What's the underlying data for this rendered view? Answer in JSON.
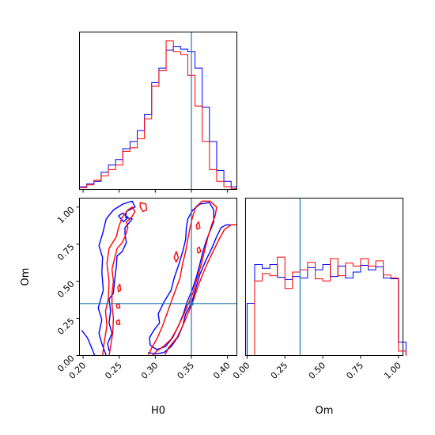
{
  "chart_data": [
    {
      "type": "histogram",
      "panel": "top-left",
      "parameter": "H0",
      "xlim": [
        0.195,
        0.413
      ],
      "truth": 0.35,
      "bins": [
        0.195,
        0.205,
        0.215,
        0.225,
        0.235,
        0.245,
        0.255,
        0.265,
        0.275,
        0.285,
        0.295,
        0.305,
        0.315,
        0.325,
        0.335,
        0.345,
        0.355,
        0.365,
        0.375,
        0.385,
        0.395,
        0.405,
        0.413
      ],
      "series": [
        {
          "color": "#0000ff",
          "values": [
            3,
            6,
            9,
            19,
            27,
            33,
            45,
            53,
            65,
            83,
            118,
            134,
            154,
            158,
            155,
            152,
            134,
            91,
            53,
            21,
            9,
            3
          ]
        },
        {
          "color": "#ff0000",
          "values": [
            2,
            5,
            10,
            15,
            22,
            27,
            42,
            46,
            56,
            78,
            114,
            131,
            164,
            152,
            149,
            126,
            92,
            53,
            22,
            9,
            3,
            1
          ]
        }
      ]
    },
    {
      "type": "contour",
      "panel": "bottom-left",
      "xlabel": "H0",
      "ylabel": "Om",
      "xlim": [
        0.195,
        0.413
      ],
      "ylim": [
        0.0,
        1.06
      ],
      "xticks": [
        "0.20",
        "0.25",
        "0.30",
        "0.35",
        "0.40"
      ],
      "yticks": [
        "0.00",
        "0.25",
        "0.50",
        "0.75",
        "1.00"
      ],
      "xtick_values": [
        0.2,
        0.25,
        0.3,
        0.35,
        0.4
      ],
      "ytick_values": [
        0.0,
        0.25,
        0.5,
        0.75,
        1.0
      ],
      "truth": {
        "x": 0.35,
        "y": 0.35
      },
      "contours": [
        {
          "color": "#0000ff",
          "points": [
            [
              0.198,
              0.17
            ],
            [
              0.206,
              0.12
            ],
            [
              0.212,
              0.05
            ],
            [
              0.216,
              0.0
            ]
          ]
        },
        {
          "color": "#0000ff",
          "points": [
            [
              0.232,
              0.0
            ],
            [
              0.226,
              0.08
            ],
            [
              0.222,
              0.15
            ],
            [
              0.226,
              0.24
            ],
            [
              0.221,
              0.32
            ],
            [
              0.228,
              0.44
            ],
            [
              0.226,
              0.56
            ],
            [
              0.227,
              0.66
            ],
            [
              0.222,
              0.74
            ],
            [
              0.227,
              0.82
            ],
            [
              0.232,
              0.92
            ],
            [
              0.242,
              0.98
            ],
            [
              0.255,
              1.02
            ],
            [
              0.268,
              1.04
            ],
            [
              0.272,
              1.0
            ],
            [
              0.26,
              0.97
            ],
            [
              0.259,
              0.93
            ],
            [
              0.268,
              0.92
            ],
            [
              0.258,
              0.86
            ],
            [
              0.258,
              0.82
            ],
            [
              0.26,
              0.76
            ],
            [
              0.254,
              0.7
            ],
            [
              0.247,
              0.67
            ],
            [
              0.246,
              0.6
            ],
            [
              0.244,
              0.52
            ],
            [
              0.242,
              0.42
            ],
            [
              0.236,
              0.38
            ],
            [
              0.238,
              0.3
            ],
            [
              0.236,
              0.22
            ],
            [
              0.24,
              0.15
            ],
            [
              0.234,
              0.08
            ],
            [
              0.236,
              0.03
            ]
          ]
        },
        {
          "color": "#0000ff",
          "points": [
            [
              0.249,
              0.94
            ],
            [
              0.255,
              0.96
            ],
            [
              0.262,
              0.93
            ],
            [
              0.256,
              0.9
            ],
            [
              0.249,
              0.94
            ]
          ]
        },
        {
          "color": "#0000ff",
          "points": [
            [
              0.29,
              0.02
            ],
            [
              0.3,
              0.01
            ],
            [
              0.312,
              0.02
            ],
            [
              0.322,
              0.06
            ],
            [
              0.332,
              0.13
            ],
            [
              0.338,
              0.2
            ],
            [
              0.342,
              0.28
            ],
            [
              0.35,
              0.35
            ],
            [
              0.356,
              0.45
            ],
            [
              0.362,
              0.55
            ],
            [
              0.37,
              0.64
            ],
            [
              0.378,
              0.72
            ],
            [
              0.385,
              0.8
            ],
            [
              0.391,
              0.86
            ],
            [
              0.398,
              0.88
            ],
            [
              0.41,
              0.88
            ]
          ]
        },
        {
          "color": "#0000ff",
          "points": [
            [
              0.306,
              0.22
            ],
            [
              0.304,
              0.28
            ],
            [
              0.312,
              0.36
            ],
            [
              0.322,
              0.44
            ],
            [
              0.326,
              0.52
            ],
            [
              0.333,
              0.62
            ],
            [
              0.338,
              0.7
            ],
            [
              0.342,
              0.78
            ],
            [
              0.343,
              0.86
            ],
            [
              0.345,
              0.92
            ],
            [
              0.352,
              0.98
            ],
            [
              0.362,
              1.02
            ],
            [
              0.375,
              1.03
            ],
            [
              0.381,
              0.98
            ],
            [
              0.381,
              0.9
            ],
            [
              0.376,
              0.84
            ],
            [
              0.371,
              0.78
            ],
            [
              0.366,
              0.7
            ],
            [
              0.362,
              0.62
            ],
            [
              0.357,
              0.53
            ],
            [
              0.351,
              0.44
            ],
            [
              0.344,
              0.36
            ],
            [
              0.339,
              0.28
            ],
            [
              0.332,
              0.2
            ],
            [
              0.324,
              0.12
            ],
            [
              0.314,
              0.06
            ],
            [
              0.302,
              0.04
            ],
            [
              0.293,
              0.07
            ],
            [
              0.292,
              0.12
            ],
            [
              0.298,
              0.17
            ],
            [
              0.306,
              0.22
            ]
          ]
        },
        {
          "color": "#ff0000",
          "points": [
            [
              0.227,
              0.0
            ],
            [
              0.229,
              0.08
            ],
            [
              0.233,
              0.2
            ],
            [
              0.231,
              0.3
            ],
            [
              0.235,
              0.38
            ],
            [
              0.236,
              0.5
            ],
            [
              0.233,
              0.62
            ],
            [
              0.236,
              0.72
            ],
            [
              0.246,
              0.8
            ],
            [
              0.249,
              0.86
            ],
            [
              0.254,
              0.93
            ],
            [
              0.262,
              0.98
            ],
            [
              0.268,
              1.0
            ],
            [
              0.272,
              0.97
            ],
            [
              0.267,
              0.93
            ],
            [
              0.26,
              0.9
            ],
            [
              0.262,
              0.86
            ],
            [
              0.258,
              0.8
            ],
            [
              0.254,
              0.76
            ],
            [
              0.247,
              0.72
            ],
            [
              0.244,
              0.66
            ],
            [
              0.24,
              0.58
            ],
            [
              0.242,
              0.5
            ],
            [
              0.24,
              0.42
            ],
            [
              0.24,
              0.34
            ],
            [
              0.242,
              0.25
            ],
            [
              0.241,
              0.15
            ],
            [
              0.238,
              0.06
            ],
            [
              0.236,
              0.0
            ]
          ]
        },
        {
          "color": "#ff0000",
          "points": [
            [
              0.248,
              0.46
            ],
            [
              0.251,
              0.48
            ],
            [
              0.252,
              0.44
            ],
            [
              0.249,
              0.43
            ],
            [
              0.248,
              0.46
            ]
          ]
        },
        {
          "color": "#ff0000",
          "points": [
            [
              0.246,
              0.34
            ],
            [
              0.25,
              0.35
            ],
            [
              0.251,
              0.32
            ],
            [
              0.247,
              0.32
            ],
            [
              0.246,
              0.34
            ]
          ]
        },
        {
          "color": "#ff0000",
          "points": [
            [
              0.246,
              0.23
            ],
            [
              0.25,
              0.24
            ],
            [
              0.251,
              0.21
            ],
            [
              0.247,
              0.21
            ],
            [
              0.246,
              0.23
            ]
          ]
        },
        {
          "color": "#ff0000",
          "points": [
            [
              0.279,
              1.03
            ],
            [
              0.287,
              1.02
            ],
            [
              0.288,
              0.98
            ],
            [
              0.283,
              0.97
            ],
            [
              0.279,
              1.0
            ],
            [
              0.279,
              1.03
            ]
          ]
        },
        {
          "color": "#ff0000",
          "points": [
            [
              0.29,
              0.0
            ],
            [
              0.295,
              0.05
            ],
            [
              0.303,
              0.12
            ],
            [
              0.31,
              0.2
            ],
            [
              0.316,
              0.28
            ],
            [
              0.322,
              0.36
            ],
            [
              0.328,
              0.44
            ],
            [
              0.334,
              0.52
            ],
            [
              0.338,
              0.62
            ],
            [
              0.342,
              0.7
            ],
            [
              0.345,
              0.78
            ],
            [
              0.348,
              0.86
            ],
            [
              0.352,
              0.94
            ],
            [
              0.356,
              1.0
            ],
            [
              0.365,
              1.04
            ],
            [
              0.376,
              1.04
            ],
            [
              0.385,
              1.0
            ],
            [
              0.383,
              0.94
            ],
            [
              0.378,
              0.88
            ],
            [
              0.373,
              0.8
            ],
            [
              0.369,
              0.72
            ],
            [
              0.364,
              0.62
            ],
            [
              0.358,
              0.52
            ],
            [
              0.352,
              0.42
            ],
            [
              0.345,
              0.34
            ],
            [
              0.338,
              0.26
            ],
            [
              0.33,
              0.18
            ],
            [
              0.322,
              0.11
            ],
            [
              0.311,
              0.06
            ],
            [
              0.302,
              0.03
            ],
            [
              0.296,
              0.0
            ]
          ]
        },
        {
          "color": "#ff0000",
          "points": [
            [
              0.313,
              0.0
            ],
            [
              0.318,
              0.05
            ],
            [
              0.33,
              0.12
            ],
            [
              0.338,
              0.2
            ],
            [
              0.345,
              0.28
            ],
            [
              0.352,
              0.36
            ],
            [
              0.358,
              0.45
            ],
            [
              0.365,
              0.54
            ],
            [
              0.372,
              0.62
            ],
            [
              0.38,
              0.7
            ],
            [
              0.388,
              0.78
            ],
            [
              0.396,
              0.85
            ],
            [
              0.405,
              0.88
            ],
            [
              0.413,
              0.88
            ]
          ]
        },
        {
          "color": "#ff0000",
          "points": [
            [
              0.326,
              0.66
            ],
            [
              0.329,
              0.7
            ],
            [
              0.332,
              0.66
            ],
            [
              0.329,
              0.63
            ],
            [
              0.326,
              0.66
            ]
          ]
        },
        {
          "color": "#ff0000",
          "points": [
            [
              0.357,
              0.88
            ],
            [
              0.36,
              0.9
            ],
            [
              0.362,
              0.86
            ],
            [
              0.358,
              0.85
            ],
            [
              0.357,
              0.88
            ]
          ]
        },
        {
          "color": "#ff0000",
          "points": [
            [
              0.358,
              0.72
            ],
            [
              0.361,
              0.73
            ],
            [
              0.363,
              0.7
            ],
            [
              0.359,
              0.69
            ],
            [
              0.358,
              0.72
            ]
          ]
        }
      ]
    },
    {
      "type": "histogram",
      "panel": "bottom-right",
      "parameter": "Om",
      "xlabel": "Om",
      "xlim": [
        -0.01,
        1.03
      ],
      "xticks": [
        "0.00",
        "0.25",
        "0.50",
        "0.75",
        "1.00"
      ],
      "xtick_values": [
        0.0,
        0.25,
        0.5,
        0.75,
        1.0
      ],
      "truth": 0.35,
      "bins": [
        0.0,
        0.05,
        0.1,
        0.15,
        0.2,
        0.25,
        0.3,
        0.35,
        0.4,
        0.45,
        0.5,
        0.55,
        0.6,
        0.65,
        0.7,
        0.75,
        0.8,
        0.85,
        0.9,
        0.95,
        1.0,
        1.05
      ],
      "series": [
        {
          "color": "#0000ff",
          "values": [
            70,
            122,
            117,
            122,
            105,
            102,
            106,
            104,
            118,
            115,
            122,
            106,
            120,
            104,
            112,
            121,
            115,
            119,
            104,
            103,
            18
          ]
        },
        {
          "color": "#ff0000",
          "values": [
            0,
            100,
            110,
            107,
            132,
            90,
            112,
            115,
            125,
            103,
            100,
            130,
            107,
            124,
            120,
            130,
            120,
            127,
            108,
            104,
            6
          ]
        }
      ]
    }
  ]
}
